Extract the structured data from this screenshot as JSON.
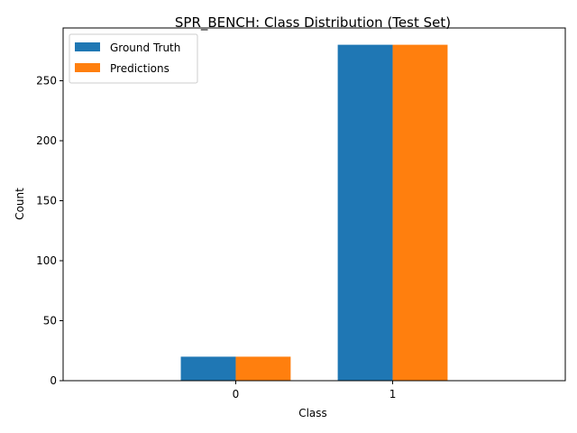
{
  "chart_data": {
    "type": "bar",
    "title": "SPR_BENCH: Class Distribution (Test Set)",
    "xlabel": "Class",
    "ylabel": "Count",
    "categories": [
      "0",
      "1"
    ],
    "series": [
      {
        "name": "Ground Truth",
        "values": [
          20,
          280
        ],
        "color": "#1f77b4"
      },
      {
        "name": "Predictions",
        "values": [
          20,
          280
        ],
        "color": "#ff7f0e"
      }
    ],
    "yticks": [
      0,
      50,
      100,
      150,
      200,
      250
    ],
    "ylim": [
      0,
      294
    ],
    "grid": false,
    "legend_position": "top-left"
  }
}
